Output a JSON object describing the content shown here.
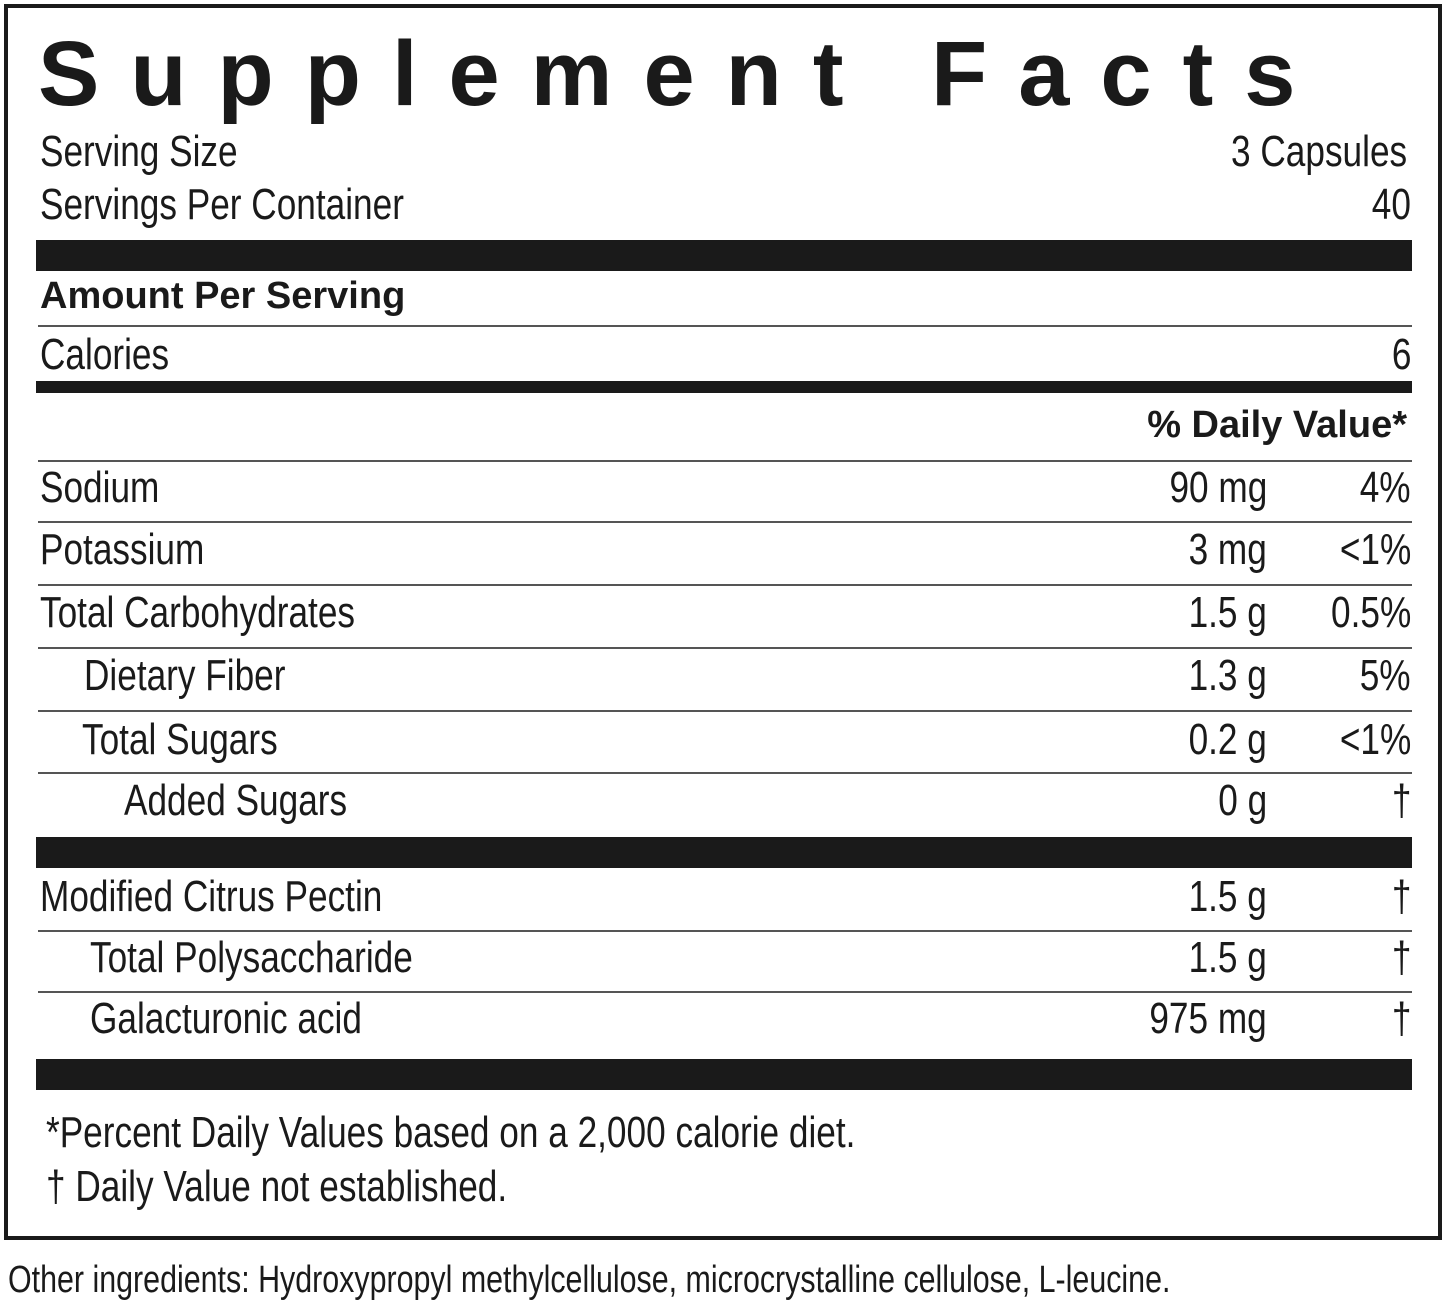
{
  "title": "Supplement Facts",
  "serving_size": {
    "label": "Serving Size",
    "value": "3 Capsules"
  },
  "servings_per_container": {
    "label": "Servings Per Container",
    "value": "40"
  },
  "amount_per_serving": "Amount Per Serving",
  "calories": {
    "label": "Calories",
    "value": "6"
  },
  "daily_value_header": "% Daily Value*",
  "nutrients": [
    {
      "name": "Sodium",
      "amount": "90 mg",
      "dv": "4%"
    },
    {
      "name": "Potassium",
      "amount": "3 mg",
      "dv": "<1%"
    },
    {
      "name": "Total Carbohydrates",
      "amount": "1.5 g",
      "dv": "0.5%"
    },
    {
      "name": "Dietary Fiber",
      "amount": "1.3 g",
      "dv": "5%"
    },
    {
      "name": "Total Sugars",
      "amount": "0.2 g",
      "dv": "<1%"
    },
    {
      "name": "Added Sugars",
      "amount": "0 g",
      "dv": "†"
    }
  ],
  "ingredients": [
    {
      "name": "Modified Citrus Pectin",
      "amount": "1.5 g",
      "dv": "†"
    },
    {
      "name": "Total Polysaccharide",
      "amount": "1.5 g",
      "dv": "†"
    },
    {
      "name": "Galacturonic acid",
      "amount": "975 mg",
      "dv": "†"
    }
  ],
  "footnotes": [
    "*Percent Daily Values based on a 2,000 calorie diet.",
    "† Daily Value not established."
  ],
  "other_ingredients": "Other ingredients: Hydroxypropyl methylcellulose, microcrystalline cellulose, L-leucine."
}
